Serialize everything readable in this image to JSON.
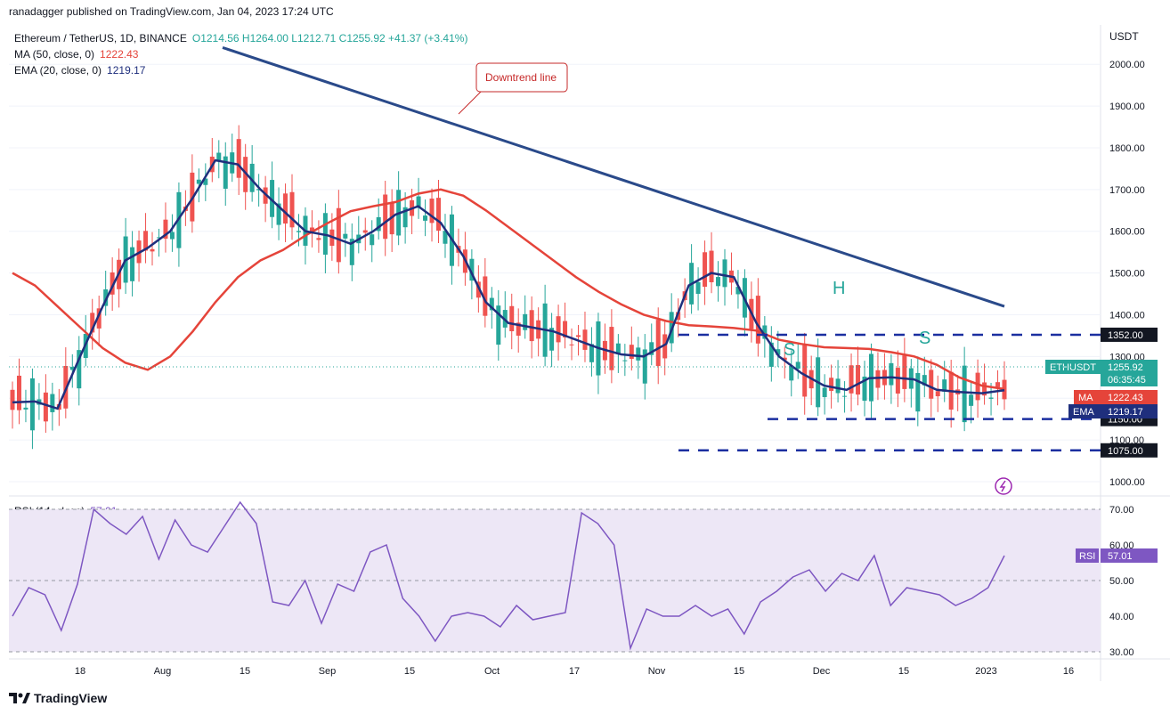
{
  "header": {
    "published": "ranadagger published on TradingView.com, Jan 04, 2023 17:24 UTC",
    "symbol": "Ethereum / TetherUS, 1D, BINANCE",
    "ohlc": "O1214.56  H1264.00  L1212.71  C1255.92  +41.37 (+3.41%)",
    "ma_label": "MA (50, close, 0)",
    "ma_value": "1222.43",
    "ema_label": "EMA (20, close, 0)",
    "ema_value": "1219.17",
    "rsi_label": "RSI (14, close)",
    "rsi_value": "57.01",
    "currency": "USDT",
    "brand": "TradingView"
  },
  "colors": {
    "up": "#26a69a",
    "down": "#ef5350",
    "ma": "#e5443a",
    "ema": "#1f2f7d",
    "trend": "#2a4a8a",
    "level": "#1b2fa0",
    "rsi": "#7e57c2",
    "rsi_band": "#ede7f6",
    "pattern": "#26a69a"
  },
  "chart_data": [
    {
      "type": "candlestick",
      "title": "Ethereum / TetherUS, 1D, BINANCE",
      "y_axis_unit": "USDT",
      "ylim": [
        970,
        2090
      ],
      "y_ticks": [
        "2000.00",
        "1900.00",
        "1800.00",
        "1700.00",
        "1600.00",
        "1500.00",
        "1400.00",
        "1300.00",
        "1200.00",
        "1100.00",
        "1000.00"
      ],
      "x_ticks": [
        "18",
        "Aug",
        "15",
        "Sep",
        "15",
        "Oct",
        "17",
        "Nov",
        "15",
        "Dec",
        "15",
        "2023",
        "16"
      ],
      "ohlc_last": {
        "open": 1214.56,
        "high": 1264.0,
        "low": 1212.71,
        "close": 1255.92,
        "change": "+41.37 (+3.41%)"
      },
      "series": [
        {
          "name": "MA (50, close, 0)",
          "last": 1222.43,
          "values": [
            1500,
            1470,
            1420,
            1370,
            1320,
            1285,
            1268,
            1300,
            1360,
            1430,
            1490,
            1530,
            1555,
            1590,
            1620,
            1648,
            1660,
            1670,
            1690,
            1700,
            1685,
            1650,
            1610,
            1570,
            1530,
            1490,
            1455,
            1425,
            1400,
            1385,
            1375,
            1372,
            1368,
            1362,
            1340,
            1330,
            1322,
            1320,
            1318,
            1310,
            1300,
            1280,
            1250,
            1230,
            1222
          ]
        },
        {
          "name": "EMA (20, close, 0)",
          "last": 1219.17,
          "values": [
            1190,
            1192,
            1175,
            1300,
            1420,
            1530,
            1560,
            1600,
            1680,
            1770,
            1760,
            1700,
            1650,
            1600,
            1590,
            1570,
            1600,
            1640,
            1660,
            1620,
            1540,
            1430,
            1380,
            1370,
            1360,
            1340,
            1320,
            1305,
            1300,
            1330,
            1470,
            1500,
            1490,
            1380,
            1300,
            1260,
            1230,
            1220,
            1248,
            1250,
            1245,
            1220,
            1215,
            1212,
            1219
          ]
        },
        {
          "name": "Downtrend line",
          "points": [
            [
              0,
              2040
            ],
            [
              1,
              1420
            ]
          ]
        }
      ],
      "levels": [
        {
          "label": "1352.00",
          "value": 1352
        },
        {
          "label": "1150.00",
          "value": 1150
        },
        {
          "label": "1075.00",
          "value": 1075
        }
      ],
      "price_badges": [
        {
          "name": "ETHUSDT",
          "value": "1255.92",
          "extra": "06:35:45"
        },
        {
          "name": "MA",
          "value": "1222.43"
        },
        {
          "name": "EMA",
          "value": "1219.17"
        }
      ],
      "annotations": [
        {
          "text": "Downtrend line"
        },
        {
          "text": "H"
        },
        {
          "text": "S"
        },
        {
          "text": "S"
        }
      ]
    },
    {
      "type": "line",
      "title": "RSI (14, close)",
      "ylim": [
        28,
        73
      ],
      "y_ticks": [
        "70.00",
        "60.00",
        "50.00",
        "40.00",
        "30.00"
      ],
      "band": [
        30,
        70
      ],
      "last": 57.01,
      "values": [
        40,
        48,
        46,
        36,
        49,
        70,
        66,
        63,
        68,
        56,
        67,
        60,
        58,
        65,
        72,
        66,
        44,
        43,
        50,
        38,
        49,
        47,
        58,
        60,
        45,
        40,
        33,
        40,
        41,
        40,
        37,
        43,
        39,
        40,
        41,
        69,
        66,
        60,
        31,
        42,
        40,
        40,
        43,
        40,
        42,
        35,
        44,
        47,
        51,
        53,
        47,
        52,
        50,
        57,
        43,
        48,
        47,
        46,
        43,
        45,
        48,
        57
      ]
    }
  ]
}
